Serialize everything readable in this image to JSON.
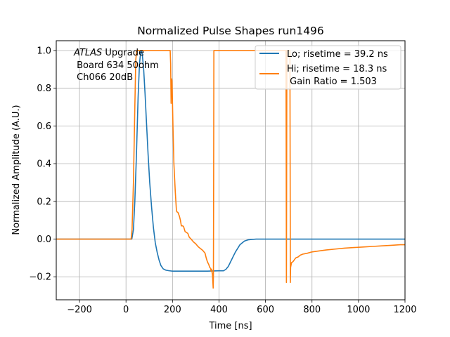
{
  "chart_data": {
    "type": "line",
    "title": "Normalized Pulse Shapes run1496",
    "xlabel": "Time [ns]",
    "ylabel": "Normalized Amplitude (A.U.)",
    "xlim": [
      -300,
      1200
    ],
    "ylim": [
      -0.322,
      1.052
    ],
    "xticks": [
      -200,
      0,
      200,
      400,
      600,
      800,
      1000,
      1200
    ],
    "xtick_labels": [
      "−200",
      "0",
      "200",
      "400",
      "600",
      "800",
      "1000",
      "1200"
    ],
    "yticks": [
      -0.2,
      0.0,
      0.2,
      0.4,
      0.6,
      0.8,
      1.0
    ],
    "ytick_labels": [
      "−0.2",
      "0.0",
      "0.2",
      "0.4",
      "0.6",
      "0.8",
      "1.0"
    ],
    "grid": true,
    "legend_position": "top-right",
    "annotation": {
      "italic_part": "ATLAS",
      "line1_rest": " Upgrade",
      "line2": " Board 634 50ohm",
      "line3": " Ch066 20dB"
    },
    "series": [
      {
        "name": "Lo",
        "legend_label": "Lo; risetime = 39.2 ns",
        "color": "#1f77b4",
        "x": [
          -300,
          25,
          32,
          38,
          45,
          52,
          58,
          63,
          66,
          70,
          76,
          82,
          88,
          95,
          102,
          110,
          118,
          126,
          134,
          142,
          150,
          160,
          172,
          185,
          200,
          250,
          300,
          350,
          400,
          420,
          430,
          440,
          450,
          460,
          470,
          480,
          490,
          500,
          510,
          525,
          540,
          560,
          600,
          800,
          1000,
          1200
        ],
        "y": [
          0.0,
          0.0,
          0.05,
          0.2,
          0.45,
          0.75,
          0.93,
          0.99,
          1.0,
          0.98,
          0.9,
          0.77,
          0.62,
          0.45,
          0.3,
          0.17,
          0.06,
          -0.02,
          -0.07,
          -0.11,
          -0.14,
          -0.158,
          -0.165,
          -0.168,
          -0.17,
          -0.17,
          -0.17,
          -0.17,
          -0.168,
          -0.168,
          -0.16,
          -0.145,
          -0.12,
          -0.095,
          -0.07,
          -0.05,
          -0.03,
          -0.02,
          -0.01,
          -0.004,
          -0.002,
          0.0,
          0.0,
          0.0,
          0.0,
          0.0
        ]
      },
      {
        "name": "Hi",
        "legend_label": "Hi; risetime = 18.3 ns\n Gain Ratio = 1.503",
        "legend_line1": "Hi; risetime = 18.3 ns",
        "legend_line2": " Gain Ratio = 1.503",
        "color": "#ff7f0e",
        "x": [
          -300,
          22,
          26,
          32,
          38,
          42,
          46,
          190,
          192,
          194,
          196,
          198,
          202,
          206,
          212,
          217,
          219,
          224,
          230,
          234,
          238,
          244,
          248,
          254,
          260,
          266,
          272,
          280,
          290,
          300,
          310,
          320,
          330,
          340,
          345,
          350,
          356,
          360,
          364,
          366,
          368,
          372,
          375,
          376,
          377,
          378,
          380,
          400,
          500,
          600,
          680,
          688,
          689,
          690,
          691,
          692,
          700,
          705,
          706,
          707,
          708,
          712,
          718,
          724,
          730,
          740,
          750,
          760,
          780,
          800,
          830,
          860,
          900,
          940,
          980,
          1020,
          1060,
          1100,
          1140,
          1180,
          1200
        ],
        "y": [
          0.0,
          0.0,
          0.05,
          0.3,
          0.7,
          0.95,
          1.0,
          1.0,
          0.93,
          0.72,
          0.85,
          0.84,
          0.6,
          0.4,
          0.25,
          0.15,
          0.145,
          0.14,
          0.12,
          0.1,
          0.07,
          0.07,
          0.065,
          0.04,
          0.035,
          0.03,
          0.01,
          0.0,
          -0.015,
          -0.025,
          -0.04,
          -0.05,
          -0.06,
          -0.075,
          -0.1,
          -0.12,
          -0.135,
          -0.15,
          -0.155,
          -0.17,
          -0.16,
          -0.19,
          -0.26,
          -0.2,
          0.3,
          1.0,
          1.0,
          1.0,
          1.0,
          1.0,
          1.0,
          1.0,
          0.5,
          -0.23,
          0.4,
          1.0,
          1.0,
          1.0,
          0.4,
          -0.23,
          -0.15,
          -0.125,
          -0.12,
          -0.11,
          -0.1,
          -0.095,
          -0.085,
          -0.08,
          -0.075,
          -0.068,
          -0.063,
          -0.058,
          -0.053,
          -0.048,
          -0.045,
          -0.042,
          -0.039,
          -0.036,
          -0.033,
          -0.03,
          -0.03
        ]
      }
    ]
  }
}
